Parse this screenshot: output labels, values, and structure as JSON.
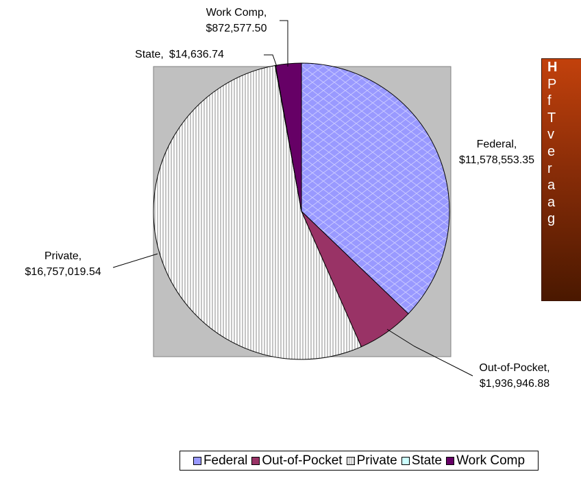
{
  "chart_data": {
    "type": "pie",
    "categories": [
      "Federal",
      "Out-of-Pocket",
      "Private",
      "State",
      "Work Comp"
    ],
    "values": [
      11578553.35,
      1936946.88,
      16757019.54,
      14636.74,
      872577.5
    ],
    "value_labels": [
      "$11,578,553.35",
      "$1,936,946.88",
      "$16,757,019.54",
      "$14,636.74",
      "$872,577.50"
    ],
    "label_separator": ",",
    "colors": [
      "#9999ff",
      "#993366",
      "#ffffff",
      "#ccffff",
      "#660066"
    ],
    "legend": "bottom",
    "annotation": [
      "H",
      "P",
      "f",
      "T",
      "v",
      "e",
      "r",
      "a",
      "a",
      "g"
    ]
  }
}
